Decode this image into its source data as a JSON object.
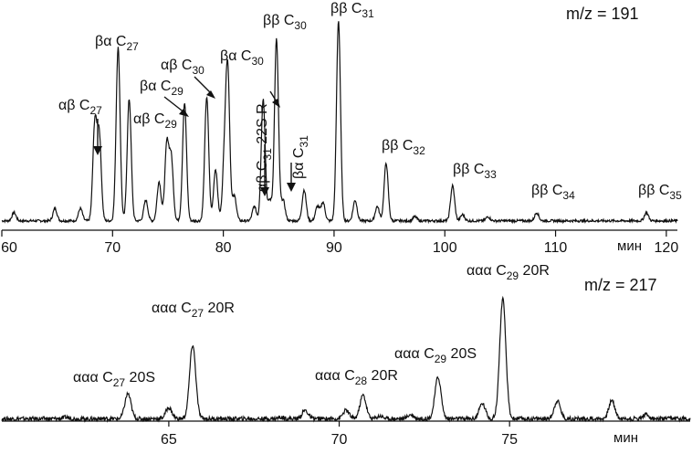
{
  "chart_data": [
    {
      "type": "line",
      "mz": "m/z = 191",
      "xlabel": "мин",
      "xlim": [
        60,
        121
      ],
      "xticks": [
        60,
        70,
        80,
        90,
        100,
        110,
        120
      ],
      "xtick_labels": [
        "60",
        "70",
        "80",
        "90",
        "100",
        "110",
        "120"
      ],
      "baseline": 1,
      "ylim": [
        0,
        100
      ],
      "peaks": [
        {
          "x": 61.1,
          "y": 5
        },
        {
          "x": 64.8,
          "y": 7
        },
        {
          "x": 67.1,
          "y": 7
        },
        {
          "x": 68.4,
          "y": 48
        },
        {
          "x": 68.8,
          "y": 42
        },
        {
          "x": 70.5,
          "y": 85
        },
        {
          "x": 71.5,
          "y": 60
        },
        {
          "x": 73.0,
          "y": 11
        },
        {
          "x": 74.2,
          "y": 20
        },
        {
          "x": 74.9,
          "y": 38
        },
        {
          "x": 75.3,
          "y": 31
        },
        {
          "x": 76.5,
          "y": 58
        },
        {
          "x": 78.5,
          "y": 61
        },
        {
          "x": 79.3,
          "y": 26
        },
        {
          "x": 80.1,
          "y": 28
        },
        {
          "x": 80.4,
          "y": 72
        },
        {
          "x": 81.0,
          "y": 13
        },
        {
          "x": 82.8,
          "y": 8
        },
        {
          "x": 83.6,
          "y": 60
        },
        {
          "x": 84.2,
          "y": 11
        },
        {
          "x": 84.8,
          "y": 89
        },
        {
          "x": 85.4,
          "y": 11
        },
        {
          "x": 87.3,
          "y": 16
        },
        {
          "x": 88.5,
          "y": 8
        },
        {
          "x": 89.0,
          "y": 10
        },
        {
          "x": 90.4,
          "y": 98
        },
        {
          "x": 91.9,
          "y": 11
        },
        {
          "x": 93.9,
          "y": 8
        },
        {
          "x": 94.7,
          "y": 29
        },
        {
          "x": 97.3,
          "y": 3
        },
        {
          "x": 100.7,
          "y": 18
        },
        {
          "x": 101.6,
          "y": 4
        },
        {
          "x": 103.9,
          "y": 3
        },
        {
          "x": 108.3,
          "y": 5
        },
        {
          "x": 118.2,
          "y": 5
        }
      ],
      "annotations": [
        {
          "label": "ββ C35",
          "x": 118.2
        },
        {
          "label": "ββ C34",
          "x": 108.3
        },
        {
          "label": "ββ C33",
          "x": 100.7
        },
        {
          "label": "ββ C32",
          "x": 94.7
        },
        {
          "label": "ββ C31",
          "x": 90.4
        },
        {
          "label": "ββ C30",
          "x": 84.8
        },
        {
          "label": "βα C31",
          "x": 85.4
        },
        {
          "label": "αβ C31 22S R",
          "x": 83.4
        },
        {
          "label": "βα C30",
          "x": 80.4
        },
        {
          "label": "αβ C30",
          "x": 78.5
        },
        {
          "label": "βα C29",
          "x": 76.5
        },
        {
          "label": "αβ C29",
          "x": 74.9
        },
        {
          "label": "βα C27",
          "x": 70.5
        },
        {
          "label": "αβ C27",
          "x": 68.8
        }
      ]
    },
    {
      "type": "line",
      "mz": "m/z = 217",
      "xlabel": "мин",
      "xlim": [
        60.1,
        80.3
      ],
      "xticks": [
        65,
        70,
        75
      ],
      "xtick_labels": [
        "65",
        "70",
        "75"
      ],
      "baseline": 5,
      "ylim": [
        0,
        100
      ],
      "peaks": [
        {
          "x": 62.0,
          "y": 6
        },
        {
          "x": 63.4,
          "y": 5
        },
        {
          "x": 63.8,
          "y": 23
        },
        {
          "x": 65.0,
          "y": 13
        },
        {
          "x": 65.7,
          "y": 58
        },
        {
          "x": 67.1,
          "y": 5
        },
        {
          "x": 68.3,
          "y": 6
        },
        {
          "x": 69.0,
          "y": 11
        },
        {
          "x": 70.2,
          "y": 11
        },
        {
          "x": 70.7,
          "y": 22
        },
        {
          "x": 71.2,
          "y": 7
        },
        {
          "x": 72.1,
          "y": 8
        },
        {
          "x": 72.9,
          "y": 35
        },
        {
          "x": 74.2,
          "y": 16
        },
        {
          "x": 74.8,
          "y": 91
        },
        {
          "x": 76.4,
          "y": 18
        },
        {
          "x": 78.0,
          "y": 18
        },
        {
          "x": 79.0,
          "y": 8
        }
      ],
      "annotations": [
        {
          "label": "ααα C29 20R",
          "x": 74.8
        },
        {
          "label": "ααα C29 20S",
          "x": 72.9
        },
        {
          "label": "ααα C28 20R",
          "x": 70.7
        },
        {
          "label": "ααα C27 20R",
          "x": 65.7
        },
        {
          "label": "ααα C27 20S",
          "x": 63.8
        }
      ]
    }
  ]
}
